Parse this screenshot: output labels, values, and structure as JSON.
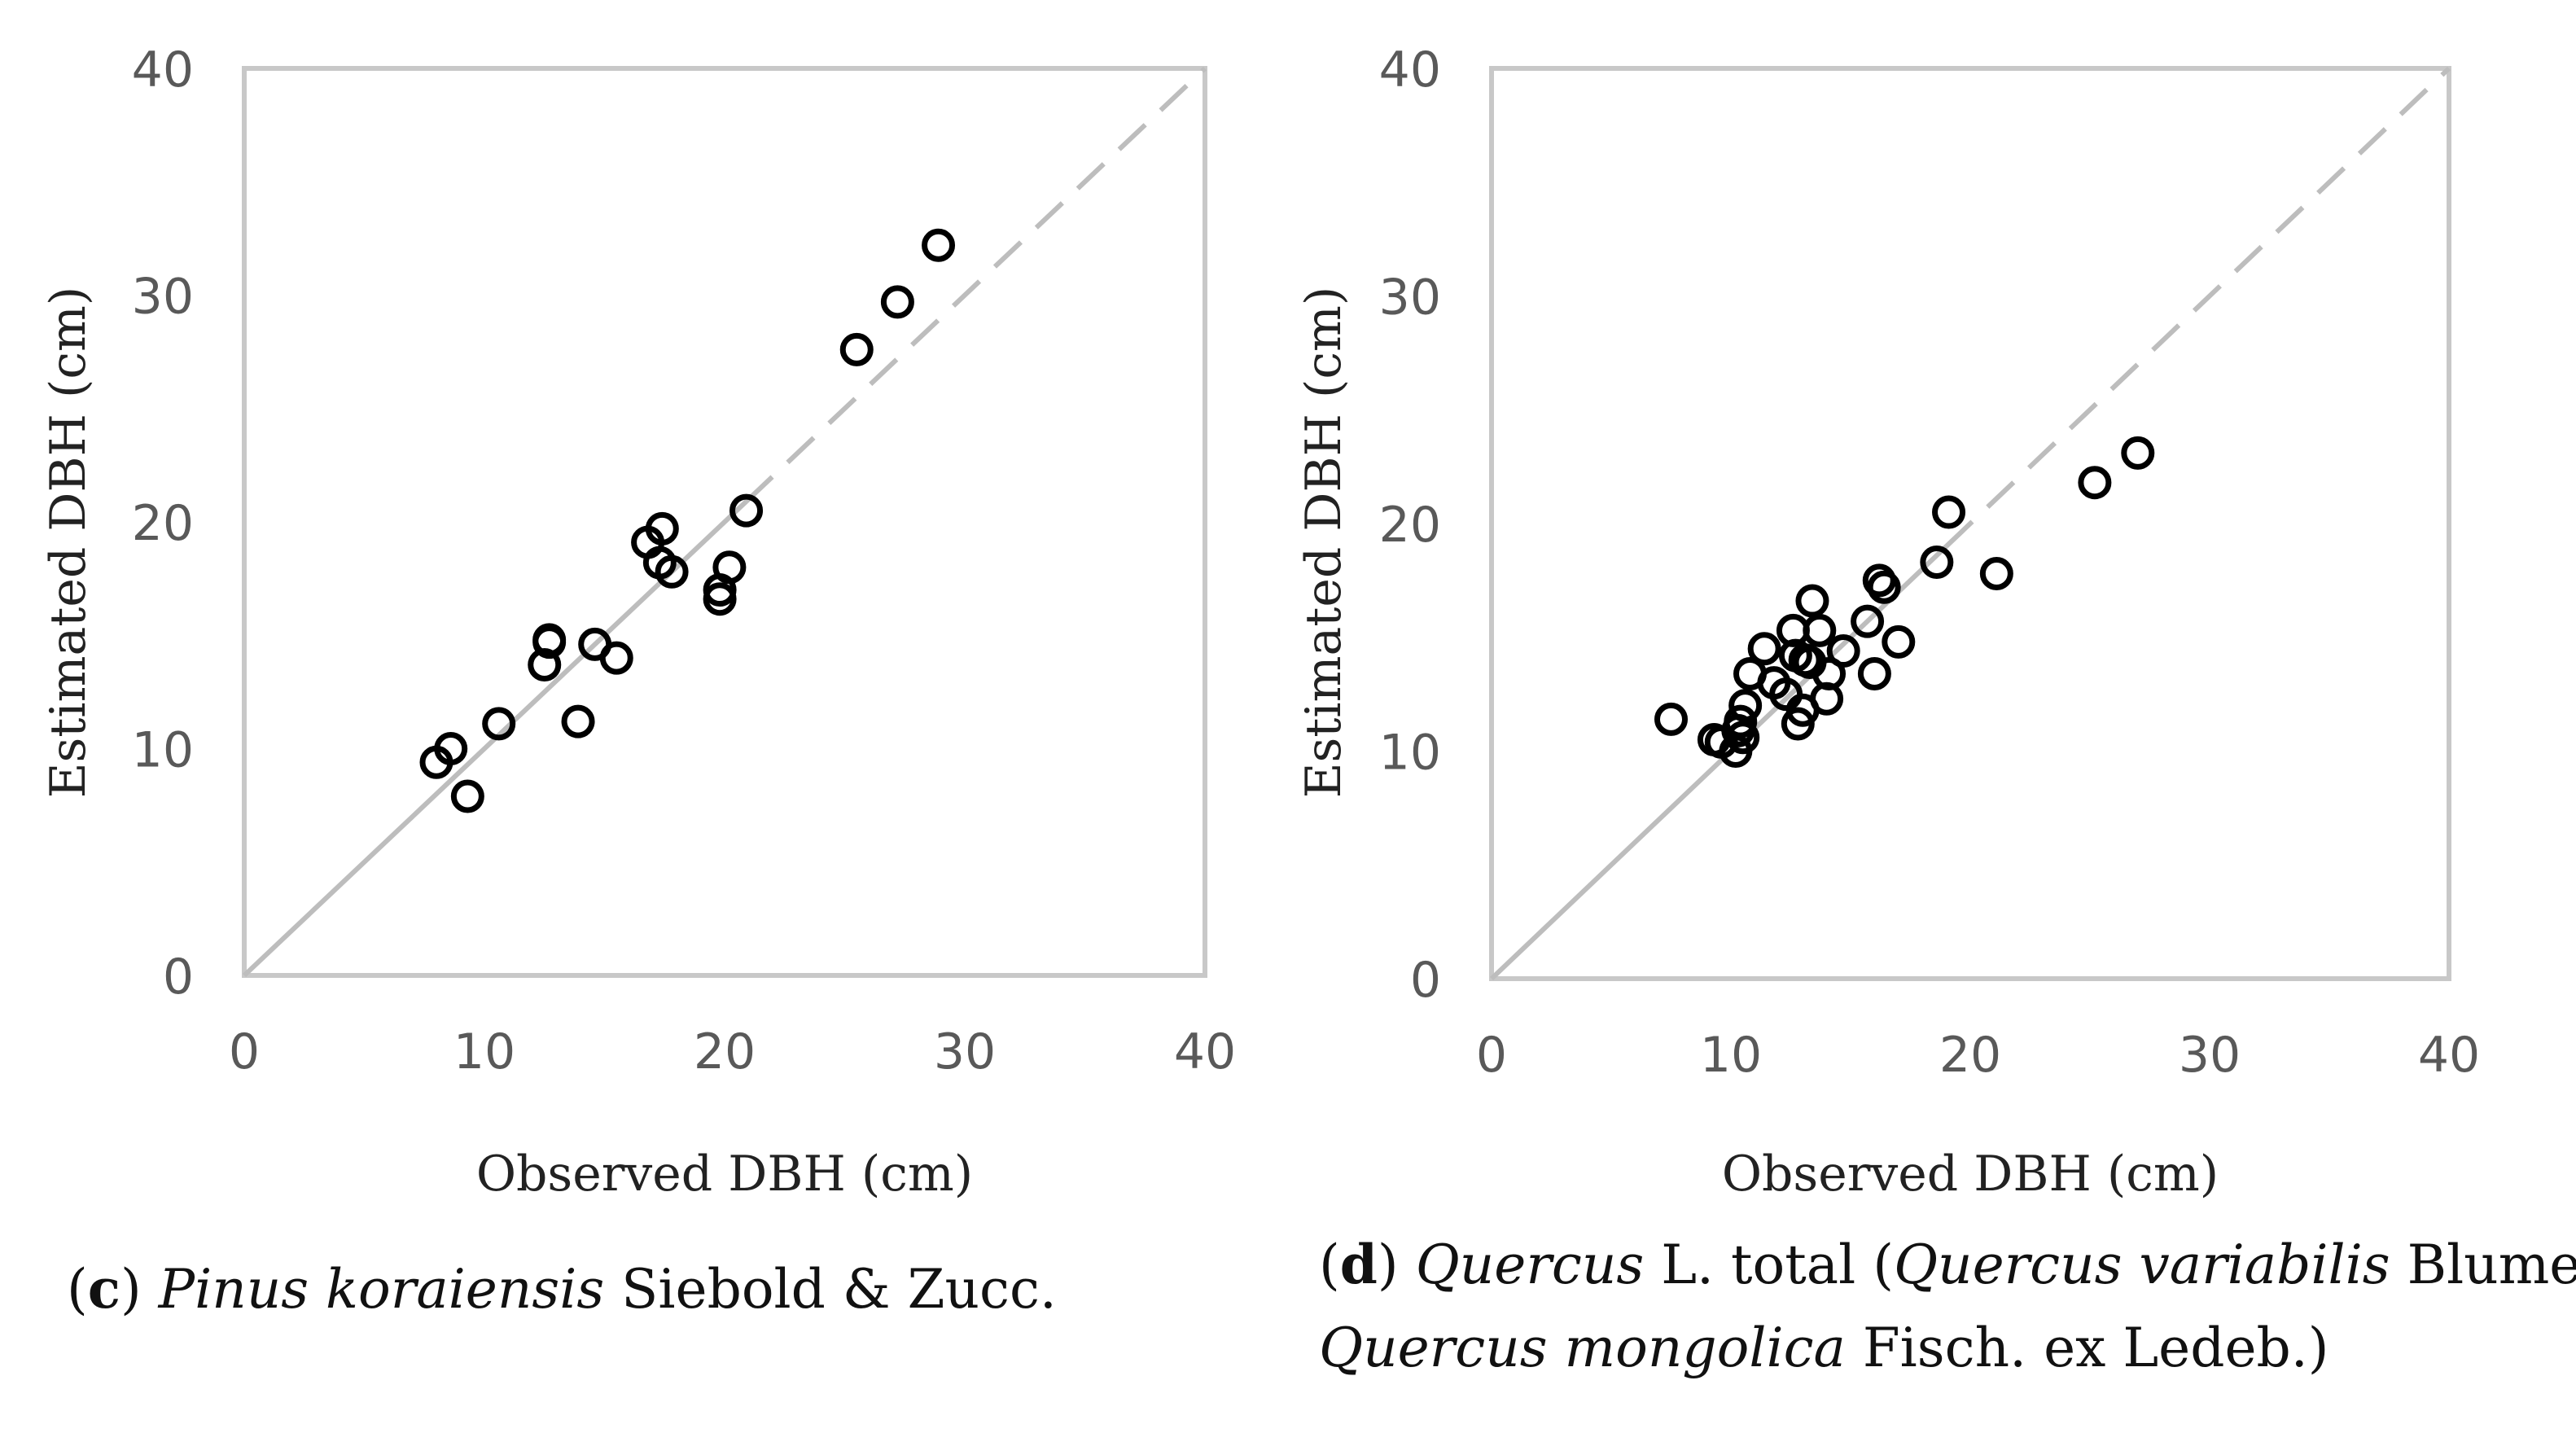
{
  "chart_data": [
    {
      "type": "scatter",
      "panel_label": "c",
      "caption_species": "Pinus koraiensis",
      "caption_rest": " Siebold & Zucc.",
      "xlabel": "Observed DBH (cm)",
      "ylabel": "Estimated DBH (cm)",
      "xlim": [
        0,
        40
      ],
      "ylim": [
        0,
        40
      ],
      "xticks": [
        "0",
        "10",
        "20",
        "30",
        "40"
      ],
      "yticks": [
        "0",
        "10",
        "20",
        "30",
        "40"
      ],
      "grid": false,
      "reference_line": "1:1 line (solid within data range, dashed beyond)",
      "points": [
        {
          "x": 8.0,
          "y": 9.4
        },
        {
          "x": 8.6,
          "y": 10.0
        },
        {
          "x": 9.3,
          "y": 7.9
        },
        {
          "x": 10.6,
          "y": 11.1
        },
        {
          "x": 12.5,
          "y": 13.7
        },
        {
          "x": 12.7,
          "y": 14.8
        },
        {
          "x": 12.7,
          "y": 14.7
        },
        {
          "x": 13.9,
          "y": 11.2
        },
        {
          "x": 14.6,
          "y": 14.6
        },
        {
          "x": 15.5,
          "y": 14.0
        },
        {
          "x": 16.8,
          "y": 19.1
        },
        {
          "x": 17.3,
          "y": 18.2
        },
        {
          "x": 17.4,
          "y": 19.7
        },
        {
          "x": 17.8,
          "y": 17.8
        },
        {
          "x": 19.8,
          "y": 17.0
        },
        {
          "x": 19.8,
          "y": 16.6
        },
        {
          "x": 20.2,
          "y": 18.0
        },
        {
          "x": 20.9,
          "y": 20.5
        },
        {
          "x": 25.5,
          "y": 27.6
        },
        {
          "x": 27.2,
          "y": 29.7
        },
        {
          "x": 28.9,
          "y": 32.2
        }
      ]
    },
    {
      "type": "scatter",
      "panel_label": "d",
      "caption_line1_species": "Quercus",
      "caption_line1_mid": " L. total (",
      "caption_line1_species2": "Quercus variabilis",
      "caption_line1_end": " Blume+",
      "caption_line2_species": "Quercus mongolica",
      "caption_line2_end": " Fisch. ex Ledeb.)",
      "xlabel": "Observed DBH (cm)",
      "ylabel": "Estimated DBH (cm)",
      "xlim": [
        0,
        40
      ],
      "ylim": [
        0,
        40
      ],
      "xticks": [
        "0",
        "10",
        "20",
        "30",
        "40"
      ],
      "yticks": [
        "0",
        "10",
        "20",
        "30",
        "40"
      ],
      "grid": false,
      "reference_line": "1:1 line (solid within data range, dashed beyond)",
      "points": [
        {
          "x": 7.5,
          "y": 11.4
        },
        {
          "x": 9.3,
          "y": 10.5
        },
        {
          "x": 9.6,
          "y": 10.4
        },
        {
          "x": 10.2,
          "y": 10.0
        },
        {
          "x": 10.3,
          "y": 10.9
        },
        {
          "x": 10.4,
          "y": 11.3
        },
        {
          "x": 10.5,
          "y": 10.6
        },
        {
          "x": 10.6,
          "y": 12.0
        },
        {
          "x": 10.8,
          "y": 13.4
        },
        {
          "x": 11.4,
          "y": 14.5
        },
        {
          "x": 11.8,
          "y": 13.0
        },
        {
          "x": 12.3,
          "y": 12.5
        },
        {
          "x": 12.6,
          "y": 15.3
        },
        {
          "x": 12.7,
          "y": 14.2
        },
        {
          "x": 12.8,
          "y": 11.2
        },
        {
          "x": 13.0,
          "y": 11.8
        },
        {
          "x": 13.1,
          "y": 14.0
        },
        {
          "x": 13.3,
          "y": 13.9
        },
        {
          "x": 13.4,
          "y": 16.6
        },
        {
          "x": 13.7,
          "y": 15.3
        },
        {
          "x": 14.0,
          "y": 12.3
        },
        {
          "x": 14.1,
          "y": 13.4
        },
        {
          "x": 14.7,
          "y": 14.4
        },
        {
          "x": 15.7,
          "y": 15.7
        },
        {
          "x": 16.0,
          "y": 13.4
        },
        {
          "x": 16.2,
          "y": 17.5
        },
        {
          "x": 16.4,
          "y": 17.2
        },
        {
          "x": 17.0,
          "y": 14.8
        },
        {
          "x": 18.6,
          "y": 18.3
        },
        {
          "x": 19.1,
          "y": 20.5
        },
        {
          "x": 21.1,
          "y": 17.8
        },
        {
          "x": 25.2,
          "y": 21.8
        },
        {
          "x": 27.0,
          "y": 23.1
        }
      ]
    }
  ]
}
